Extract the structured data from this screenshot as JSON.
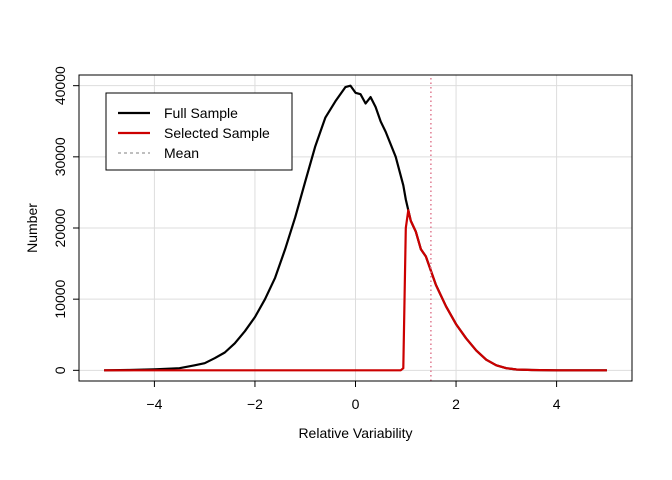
{
  "chart_data": {
    "type": "line",
    "title": "",
    "xlabel": "Relative Variability",
    "ylabel": "Number",
    "xlim": [
      -5.5,
      5.5
    ],
    "ylim": [
      -1500,
      41500
    ],
    "xticks": [
      -4,
      -2,
      0,
      2,
      4
    ],
    "xtick_labels": [
      "−4",
      "−2",
      "0",
      "2",
      "4"
    ],
    "yticks": [
      0,
      10000,
      20000,
      30000,
      40000
    ],
    "ytick_labels": [
      "0",
      "10000",
      "20000",
      "30000",
      "40000"
    ],
    "grid": true,
    "legend_position": "top-left",
    "series": [
      {
        "name": "Full Sample",
        "color": "#000000",
        "style": "solid",
        "x": [
          -5.0,
          -4.5,
          -4.0,
          -3.5,
          -3.2,
          -3.0,
          -2.8,
          -2.6,
          -2.4,
          -2.2,
          -2.0,
          -1.8,
          -1.6,
          -1.4,
          -1.2,
          -1.0,
          -0.8,
          -0.6,
          -0.4,
          -0.2,
          -0.1,
          0.0,
          0.1,
          0.2,
          0.3,
          0.4,
          0.5,
          0.6,
          0.8,
          0.95,
          1.0,
          1.05,
          1.1,
          1.2,
          1.3,
          1.4,
          1.5,
          1.6,
          1.8,
          2.0,
          2.2,
          2.4,
          2.6,
          2.8,
          3.0,
          3.2,
          3.5,
          4.0,
          4.5,
          5.0
        ],
        "y": [
          0,
          50,
          150,
          300,
          700,
          1000,
          1700,
          2500,
          3800,
          5500,
          7500,
          10000,
          13000,
          17000,
          21500,
          26500,
          31500,
          35500,
          37800,
          39800,
          40000,
          39000,
          38800,
          37500,
          38400,
          37000,
          35000,
          33500,
          30000,
          26000,
          24000,
          22500,
          21000,
          19500,
          17000,
          16000,
          14000,
          12000,
          9000,
          6500,
          4500,
          2800,
          1500,
          700,
          300,
          120,
          40,
          10,
          0,
          0
        ]
      },
      {
        "name": "Selected Sample",
        "color": "#cc0000",
        "style": "solid",
        "x": [
          -5.0,
          0.0,
          0.9,
          0.95,
          1.0,
          1.05,
          1.1,
          1.2,
          1.3,
          1.4,
          1.5,
          1.6,
          1.8,
          2.0,
          2.2,
          2.4,
          2.6,
          2.8,
          3.0,
          3.2,
          3.5,
          4.0,
          4.5,
          5.0
        ],
        "y": [
          0,
          0,
          0,
          300,
          20000,
          22500,
          21000,
          19500,
          17000,
          16000,
          14000,
          12000,
          9000,
          6500,
          4500,
          2800,
          1500,
          700,
          300,
          120,
          40,
          10,
          0,
          0
        ]
      },
      {
        "name": "Mean",
        "color": "#e07b90",
        "style": "dotted",
        "x": [
          1.5,
          1.5
        ],
        "y": [
          -1500,
          41500
        ]
      }
    ],
    "legend": [
      {
        "label": "Full Sample",
        "color": "#000000",
        "style": "solid"
      },
      {
        "label": "Selected Sample",
        "color": "#cc0000",
        "style": "solid"
      },
      {
        "label": "Mean",
        "color": "#aaaaaa",
        "style": "dotted"
      }
    ]
  }
}
